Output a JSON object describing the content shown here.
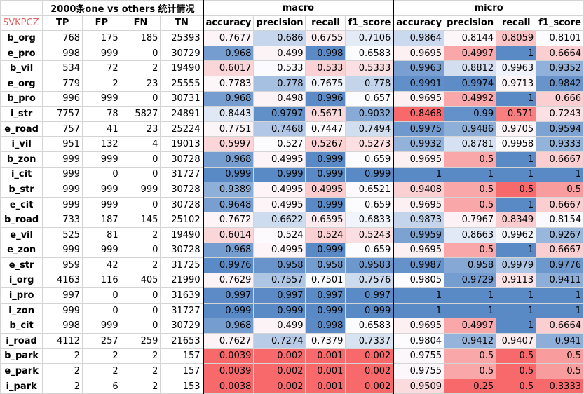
{
  "corner_label": "SVKPCZ",
  "title_stats": "2000条one vs others 统计情况",
  "title_macro": "macro",
  "title_micro": "micro",
  "count_headers": [
    "TP",
    "FP",
    "FN",
    "TN"
  ],
  "metric_headers": [
    "accuracy",
    "precision",
    "recall",
    "f1_score"
  ],
  "rows": [
    {
      "label": "b_org",
      "tp": "768",
      "fp": "175",
      "fn": "185",
      "tn": "25393",
      "macro": [
        "0.7677",
        "0.686",
        "0.6755",
        "0.7106"
      ],
      "micro": [
        "0.9864",
        "0.8144",
        "0.8059",
        "0.8101"
      ]
    },
    {
      "label": "e_pro",
      "tp": "998",
      "fp": "999",
      "fn": "0",
      "tn": "30729",
      "macro": [
        "0.968",
        "0.499",
        "0.998",
        "0.6583"
      ],
      "micro": [
        "0.9695",
        "0.4997",
        "1",
        "0.6664"
      ]
    },
    {
      "label": "b_vil",
      "tp": "534",
      "fp": "72",
      "fn": "2",
      "tn": "19490",
      "macro": [
        "0.6017",
        "0.533",
        "0.533",
        "0.5333"
      ],
      "micro": [
        "0.9963",
        "0.8812",
        "0.9963",
        "0.9352"
      ]
    },
    {
      "label": "e_org",
      "tp": "779",
      "fp": "2",
      "fn": "23",
      "tn": "25555",
      "macro": [
        "0.7783",
        "0.778",
        "0.7675",
        "0.778"
      ],
      "micro": [
        "0.9991",
        "0.9974",
        "0.9713",
        "0.9842"
      ]
    },
    {
      "label": "b_pro",
      "tp": "996",
      "fp": "999",
      "fn": "0",
      "tn": "30731",
      "macro": [
        "0.968",
        "0.498",
        "0.996",
        "0.657"
      ],
      "micro": [
        "0.9695",
        "0.4992",
        "1",
        "0.666"
      ]
    },
    {
      "label": "i_str",
      "tp": "7757",
      "fp": "78",
      "fn": "5827",
      "tn": "24891",
      "macro": [
        "0.8443",
        "0.9797",
        "0.5671",
        "0.9032"
      ],
      "micro": [
        "0.8468",
        "0.99",
        "0.571",
        "0.7243"
      ]
    },
    {
      "label": "e_road",
      "tp": "757",
      "fp": "41",
      "fn": "23",
      "tn": "25224",
      "macro": [
        "0.7751",
        "0.7468",
        "0.7447",
        "0.7494"
      ],
      "micro": [
        "0.9975",
        "0.9486",
        "0.9705",
        "0.9594"
      ]
    },
    {
      "label": "i_vil",
      "tp": "951",
      "fp": "132",
      "fn": "4",
      "tn": "19013",
      "macro": [
        "0.5997",
        "0.527",
        "0.5267",
        "0.5273"
      ],
      "micro": [
        "0.9932",
        "0.8781",
        "0.9958",
        "0.9333"
      ]
    },
    {
      "label": "b_zon",
      "tp": "999",
      "fp": "999",
      "fn": "0",
      "tn": "30728",
      "macro": [
        "0.968",
        "0.4995",
        "0.999",
        "0.659"
      ],
      "micro": [
        "0.9695",
        "0.5",
        "1",
        "0.6667"
      ]
    },
    {
      "label": "i_cit",
      "tp": "999",
      "fp": "0",
      "fn": "0",
      "tn": "31727",
      "macro": [
        "0.999",
        "0.999",
        "0.999",
        "0.999"
      ],
      "micro": [
        "1",
        "1",
        "1",
        "1"
      ]
    },
    {
      "label": "b_str",
      "tp": "999",
      "fp": "999",
      "fn": "999",
      "tn": "30728",
      "macro": [
        "0.9389",
        "0.4995",
        "0.4995",
        "0.6521"
      ],
      "micro": [
        "0.9408",
        "0.5",
        "0.5",
        "0.5"
      ]
    },
    {
      "label": "e_cit",
      "tp": "999",
      "fp": "999",
      "fn": "0",
      "tn": "30728",
      "macro": [
        "0.9648",
        "0.4995",
        "0.999",
        "0.659"
      ],
      "micro": [
        "0.9695",
        "0.5",
        "1",
        "0.6667"
      ]
    },
    {
      "label": "b_road",
      "tp": "733",
      "fp": "187",
      "fn": "145",
      "tn": "25102",
      "macro": [
        "0.7672",
        "0.6622",
        "0.6595",
        "0.6833"
      ],
      "micro": [
        "0.9873",
        "0.7967",
        "0.8349",
        "0.8154"
      ]
    },
    {
      "label": "e_vil",
      "tp": "525",
      "fp": "81",
      "fn": "2",
      "tn": "19490",
      "macro": [
        "0.6014",
        "0.524",
        "0.524",
        "0.5243"
      ],
      "micro": [
        "0.9959",
        "0.8663",
        "0.9962",
        "0.9267"
      ]
    },
    {
      "label": "e_zon",
      "tp": "999",
      "fp": "999",
      "fn": "0",
      "tn": "30728",
      "macro": [
        "0.968",
        "0.4995",
        "0.999",
        "0.659"
      ],
      "micro": [
        "0.9695",
        "0.5",
        "1",
        "0.6667"
      ]
    },
    {
      "label": "e_str",
      "tp": "959",
      "fp": "42",
      "fn": "2",
      "tn": "31725",
      "macro": [
        "0.9976",
        "0.958",
        "0.958",
        "0.9583"
      ],
      "micro": [
        "0.9987",
        "0.958",
        "0.9979",
        "0.9776"
      ]
    },
    {
      "label": "i_org",
      "tp": "4163",
      "fp": "116",
      "fn": "405",
      "tn": "21990",
      "macro": [
        "0.7629",
        "0.7557",
        "0.7501",
        "0.7576"
      ],
      "micro": [
        "0.9805",
        "0.9729",
        "0.9113",
        "0.9411"
      ]
    },
    {
      "label": "i_pro",
      "tp": "997",
      "fp": "0",
      "fn": "0",
      "tn": "31639",
      "macro": [
        "0.997",
        "0.997",
        "0.997",
        "0.997"
      ],
      "micro": [
        "1",
        "1",
        "1",
        "1"
      ]
    },
    {
      "label": "i_zon",
      "tp": "999",
      "fp": "0",
      "fn": "0",
      "tn": "31727",
      "macro": [
        "0.999",
        "0.999",
        "0.999",
        "0.999"
      ],
      "micro": [
        "1",
        "1",
        "1",
        "1"
      ]
    },
    {
      "label": "b_cit",
      "tp": "998",
      "fp": "999",
      "fn": "0",
      "tn": "30729",
      "macro": [
        "0.968",
        "0.499",
        "0.998",
        "0.6583"
      ],
      "micro": [
        "0.9695",
        "0.4997",
        "1",
        "0.6664"
      ]
    },
    {
      "label": "i_road",
      "tp": "4112",
      "fp": "257",
      "fn": "259",
      "tn": "21653",
      "macro": [
        "0.7627",
        "0.7274",
        "0.7379",
        "0.7337"
      ],
      "micro": [
        "0.9804",
        "0.9412",
        "0.9407",
        "0.941"
      ]
    },
    {
      "label": "b_park",
      "tp": "2",
      "fp": "2",
      "fn": "2",
      "tn": "157",
      "macro": [
        "0.0039",
        "0.002",
        "0.001",
        "0.002"
      ],
      "micro": [
        "0.9755",
        "0.5",
        "0.5",
        "0.5"
      ]
    },
    {
      "label": "e_park",
      "tp": "2",
      "fp": "2",
      "fn": "2",
      "tn": "157",
      "macro": [
        "0.0039",
        "0.002",
        "0.001",
        "0.002"
      ],
      "micro": [
        "0.9755",
        "0.5",
        "0.5",
        "0.5"
      ]
    },
    {
      "label": "i_park",
      "tp": "2",
      "fp": "6",
      "fn": "2",
      "tn": "153",
      "macro": [
        "0.0038",
        "0.002",
        "0.001",
        "0.002"
      ],
      "micro": [
        "0.9509",
        "0.25",
        "0.5",
        "0.3333"
      ]
    }
  ],
  "colors": {
    "low": "#f8696b",
    "mid": "#fcfcff",
    "high": "#5a8ac6",
    "corner_text": "#e06060"
  }
}
